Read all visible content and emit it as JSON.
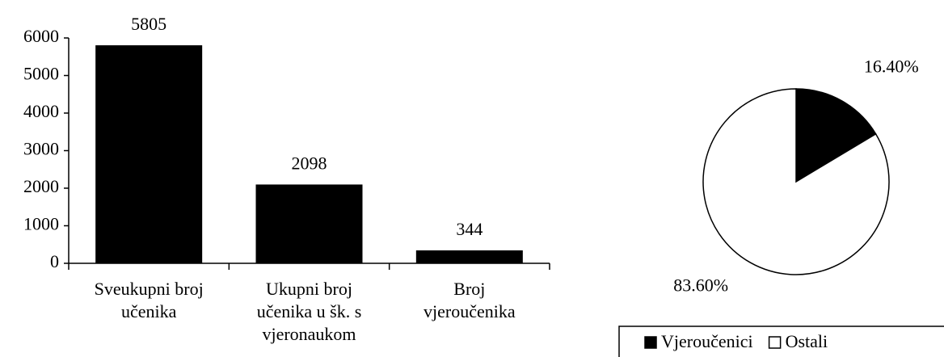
{
  "chart_data": [
    {
      "type": "bar",
      "categories": [
        "Sveukupni broj učenika",
        "Ukupni broj učenika u šk. s vjeronaukom",
        "Broj vjeroučenika"
      ],
      "values": [
        5805,
        2098,
        344
      ],
      "color": "#000000",
      "ylim": [
        0,
        6000
      ],
      "yticks": [
        0,
        1000,
        2000,
        3000,
        4000,
        5000,
        6000
      ]
    },
    {
      "type": "pie",
      "categories": [
        "Vjeroučenici",
        "Ostali"
      ],
      "values": [
        16.4,
        83.6
      ],
      "value_labels": [
        "16.40%",
        "83.60%"
      ],
      "colors": [
        "#000000",
        "#ffffff"
      ],
      "legend": "bottom"
    }
  ]
}
